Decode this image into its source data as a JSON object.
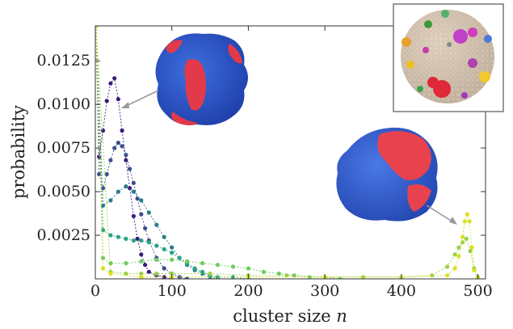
{
  "chart_data": {
    "type": "scatter",
    "title": "",
    "xlabel": "cluster size n",
    "xlabel_main": "cluster size ",
    "xlabel_var": "n",
    "ylabel": "probability",
    "xlim": [
      0,
      510
    ],
    "ylim": [
      0,
      0.0145
    ],
    "x_ticks": [
      0,
      100,
      200,
      300,
      400,
      500
    ],
    "x_tick_labels": [
      "0",
      "100",
      "200",
      "300",
      "400",
      "500"
    ],
    "y_ticks": [
      0.0025,
      0.005,
      0.0075,
      0.01,
      0.0125
    ],
    "y_tick_labels": [
      "0.0025",
      "0.0050",
      "0.0075",
      "0.0100",
      "0.0125"
    ],
    "grid": false,
    "legend": "none",
    "marker": "circle, dashed connecting line",
    "series": [
      {
        "color": "#3b1a7a",
        "x": [
          1,
          5,
          10,
          15,
          20,
          25,
          30,
          35,
          40,
          45,
          50,
          55,
          60,
          65,
          70,
          80,
          90,
          100
        ],
        "values": [
          0.0145,
          0.007,
          0.0085,
          0.0102,
          0.0112,
          0.0115,
          0.0103,
          0.0085,
          0.0068,
          0.0052,
          0.0036,
          0.0023,
          0.0014,
          0.0008,
          0.0004,
          0.0002,
          0.0001,
          0.0
        ]
      },
      {
        "color": "#3d4c8f",
        "x": [
          1,
          5,
          10,
          15,
          20,
          25,
          30,
          35,
          40,
          45,
          50,
          55,
          60,
          65,
          70,
          80,
          90,
          100,
          110,
          120
        ],
        "values": [
          0.0145,
          0.006,
          0.0052,
          0.006,
          0.0068,
          0.0075,
          0.0078,
          0.0076,
          0.0071,
          0.0063,
          0.0055,
          0.0046,
          0.0037,
          0.0029,
          0.0022,
          0.0012,
          0.0006,
          0.0003,
          0.0001,
          0.0
        ]
      },
      {
        "color": "#2b7b8c",
        "x": [
          1,
          10,
          20,
          30,
          40,
          50,
          60,
          70,
          80,
          90,
          100,
          110,
          120,
          130,
          140,
          150,
          160
        ],
        "values": [
          0.0145,
          0.0042,
          0.0045,
          0.005,
          0.0053,
          0.005,
          0.0045,
          0.0038,
          0.0031,
          0.0024,
          0.0018,
          0.0012,
          0.0008,
          0.0005,
          0.0003,
          0.0001,
          0.0
        ]
      },
      {
        "color": "#2aa383",
        "x": [
          1,
          10,
          20,
          30,
          40,
          50,
          60,
          70,
          80,
          90,
          100,
          110,
          120,
          130,
          140,
          150,
          160,
          180,
          200
        ],
        "values": [
          0.0145,
          0.0028,
          0.0025,
          0.0024,
          0.0023,
          0.0022,
          0.0022,
          0.0021,
          0.0019,
          0.0017,
          0.0015,
          0.0012,
          0.0009,
          0.0006,
          0.0004,
          0.0002,
          0.0001,
          0.0001,
          0.0
        ]
      },
      {
        "color": "#6fcb5e",
        "x": [
          1,
          10,
          20,
          40,
          60,
          80,
          100,
          120,
          140,
          160,
          180,
          200,
          220,
          240,
          260,
          280,
          300,
          320
        ],
        "values": [
          0.0145,
          0.0012,
          0.0009,
          0.0009,
          0.001,
          0.0011,
          0.0011,
          0.001,
          0.0009,
          0.0008,
          0.0007,
          0.0006,
          0.0004,
          0.0003,
          0.0002,
          0.0001,
          0.0001,
          0.0
        ]
      },
      {
        "color": "#9ad14a",
        "x": [
          1,
          20,
          40,
          60,
          80,
          100,
          150,
          200,
          250,
          300,
          350,
          400,
          440,
          460,
          470,
          475,
          480,
          485,
          490,
          495,
          500
        ],
        "values": [
          0.0145,
          0.0004,
          0.0003,
          0.0003,
          0.0003,
          0.0003,
          0.0003,
          0.0002,
          0.0002,
          0.0001,
          0.0001,
          0.0001,
          0.0002,
          0.0007,
          0.0014,
          0.0018,
          0.0021,
          0.0023,
          0.0016,
          0.0006,
          0.0001
        ]
      },
      {
        "color": "#d9e01f",
        "x": [
          1,
          10,
          20,
          60,
          100,
          200,
          300,
          400,
          460,
          470,
          475,
          480,
          483,
          486,
          489,
          492,
          495,
          500
        ],
        "values": [
          0.0145,
          0.0006,
          0.0003,
          0.0001,
          0.0001,
          0.0001,
          0.0001,
          0.0001,
          0.0002,
          0.0006,
          0.0013,
          0.0024,
          0.0033,
          0.0037,
          0.0033,
          0.0018,
          0.0005,
          0.0
        ]
      }
    ],
    "insets": [
      "mixed cluster surface (small)",
      "mixed cluster surface (large)",
      "particle cluster snapshot"
    ]
  }
}
